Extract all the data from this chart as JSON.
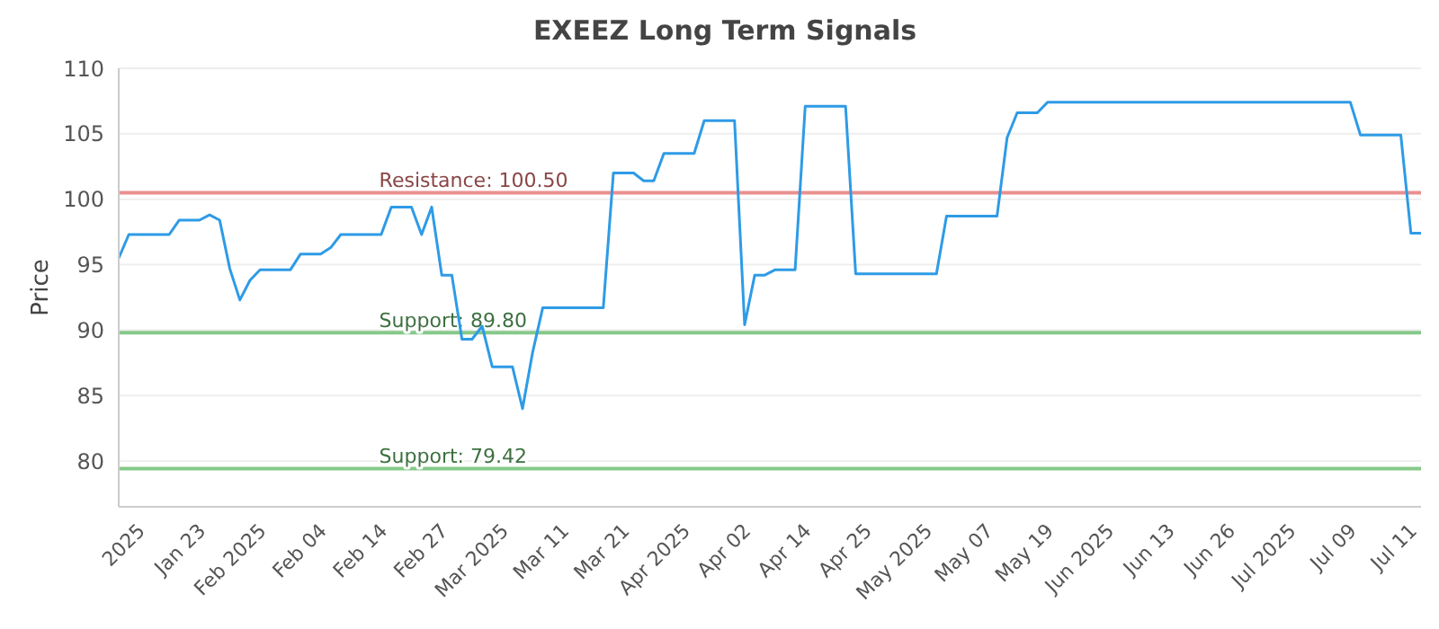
{
  "chart_data": {
    "type": "line",
    "title": "EXEEZ Long Term Signals",
    "ylabel": "Price",
    "categories": [
      null,
      null,
      "2025",
      null,
      null,
      null,
      null,
      null,
      "Jan 23",
      null,
      null,
      null,
      null,
      null,
      "Feb 2025",
      null,
      null,
      null,
      null,
      null,
      "Feb 04",
      null,
      null,
      null,
      null,
      null,
      "Feb 14",
      null,
      null,
      null,
      null,
      null,
      "Feb 27",
      null,
      null,
      null,
      null,
      null,
      "Mar 2025",
      null,
      null,
      null,
      null,
      null,
      "Mar 11",
      null,
      null,
      null,
      null,
      null,
      "Mar 21",
      null,
      null,
      null,
      null,
      null,
      "Apr 2025",
      null,
      null,
      null,
      null,
      null,
      "Apr 02",
      null,
      null,
      null,
      null,
      null,
      "Apr 14",
      null,
      null,
      null,
      null,
      null,
      "Apr 25",
      null,
      null,
      null,
      null,
      null,
      "May 2025",
      null,
      null,
      null,
      null,
      null,
      "May 07",
      null,
      null,
      null,
      null,
      null,
      "May 19",
      null,
      null,
      null,
      null,
      null,
      "Jun 2025",
      null,
      null,
      null,
      null,
      null,
      "Jun 13",
      null,
      null,
      null,
      null,
      null,
      "Jun 26",
      null,
      null,
      null,
      null,
      null,
      "Jul 2025",
      null,
      null,
      null,
      null,
      null,
      "Jul 09",
      null,
      null,
      null,
      null,
      null,
      "Jul 11",
      null
    ],
    "series": [
      {
        "color": "#2e9be6",
        "values": [
          95.5,
          97.3,
          97.3,
          97.3,
          97.3,
          97.3,
          98.4,
          98.4,
          98.4,
          98.8,
          98.4,
          94.7,
          92.3,
          93.8,
          94.6,
          94.6,
          94.6,
          94.6,
          95.8,
          95.8,
          95.8,
          96.3,
          97.3,
          97.3,
          97.3,
          97.3,
          97.3,
          99.4,
          99.4,
          99.4,
          97.3,
          99.4,
          94.2,
          94.2,
          89.3,
          89.3,
          90.3,
          87.2,
          87.2,
          87.2,
          84.0,
          88.3,
          91.7,
          91.7,
          91.7,
          91.7,
          91.7,
          91.7,
          91.7,
          102.0,
          102.0,
          102.0,
          101.4,
          101.4,
          103.5,
          103.5,
          103.5,
          103.5,
          106.0,
          106.0,
          106.0,
          106.0,
          90.4,
          94.2,
          94.2,
          94.6,
          94.6,
          94.6,
          107.1,
          107.1,
          107.1,
          107.1,
          107.1,
          94.3,
          94.3,
          94.3,
          94.3,
          94.3,
          94.3,
          94.3,
          94.3,
          94.3,
          98.7,
          98.7,
          98.7,
          98.7,
          98.7,
          98.7,
          104.7,
          106.6,
          106.6,
          106.6,
          107.4,
          107.4,
          107.4,
          107.4,
          107.4,
          107.4,
          107.4,
          107.4,
          107.4,
          107.4,
          107.4,
          107.4,
          107.4,
          107.4,
          107.4,
          107.4,
          107.4,
          107.4,
          107.4,
          107.4,
          107.4,
          107.4,
          107.4,
          107.4,
          107.4,
          107.4,
          107.4,
          107.4,
          107.4,
          107.4,
          107.4,
          104.9,
          104.9,
          104.9,
          104.9,
          104.9,
          97.4,
          97.4
        ]
      }
    ],
    "ylim": [
      76.5,
      110
    ],
    "yticks": [
      80,
      85,
      90,
      95,
      100,
      105,
      110
    ],
    "grid": "y",
    "legend": false,
    "marker": "none",
    "line_style": "solid",
    "ref_lines": [
      {
        "axis": "y",
        "value": 100.5,
        "label": "Resistance: 100.50",
        "color": "#e57373"
      },
      {
        "axis": "y",
        "value": 89.8,
        "label": "Support: 89.80",
        "color": "#66bb6a"
      },
      {
        "axis": "y",
        "value": 79.42,
        "label": "Support: 79.42",
        "color": "#66bb6a"
      }
    ]
  }
}
